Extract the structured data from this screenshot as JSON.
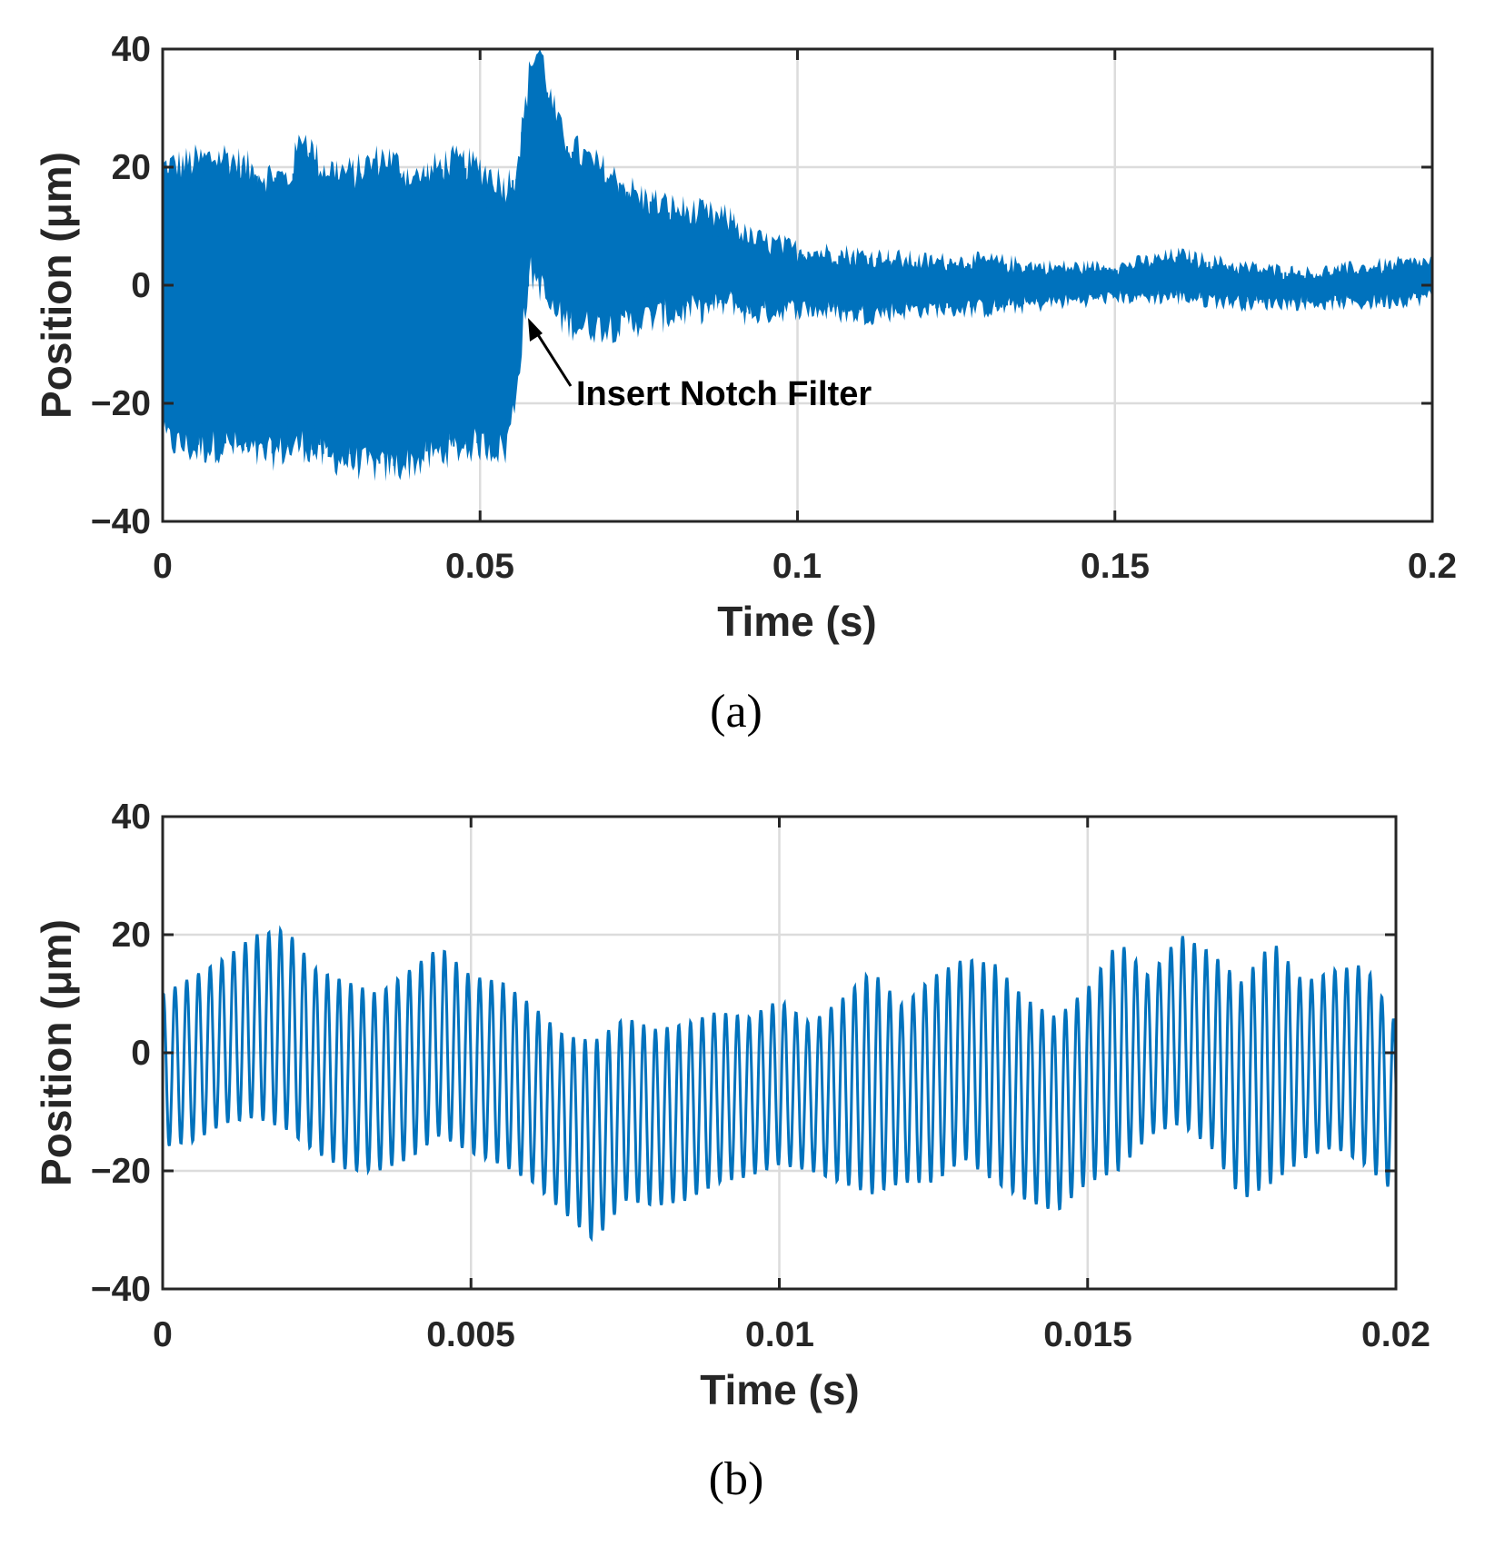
{
  "chart_data": [
    {
      "type": "line",
      "panel_label": "(a)",
      "xlabel": "Time (s)",
      "ylabel": "Position (μm)",
      "xlim": [
        0,
        0.2
      ],
      "ylim": [
        -40,
        40
      ],
      "xticks": [
        0,
        0.05,
        0.1,
        0.15,
        0.2
      ],
      "xtick_labels": [
        "0",
        "0.05",
        "0.1",
        "0.15",
        "0.2"
      ],
      "yticks": [
        -40,
        -20,
        0,
        20,
        40
      ],
      "ytick_labels": [
        "−40",
        "−20",
        "0",
        "20",
        "40"
      ],
      "grid": true,
      "line_color": "#0072BD",
      "annotation": {
        "text": "Insert Notch Filter",
        "x": 0.0575,
        "y": -5
      },
      "series": [
        {
          "name": "position",
          "envelope": {
            "t": [
              0,
              0.005,
              0.01,
              0.015,
              0.02,
              0.022,
              0.025,
              0.03,
              0.035,
              0.04,
              0.045,
              0.05,
              0.054,
              0.0555,
              0.057,
              0.058,
              0.0595,
              0.061,
              0.063,
              0.066,
              0.07,
              0.075,
              0.08,
              0.085,
              0.09,
              0.092,
              0.1,
              0.11,
              0.12,
              0.13,
              0.14,
              0.15,
              0.16,
              0.17,
              0.18,
              0.19,
              0.2
            ],
            "upper": [
              20,
              21,
              22,
              19,
              18,
              26,
              20,
              19,
              22,
              18,
              21,
              20,
              17,
              19,
              29,
              38,
              40,
              32,
              25,
              22,
              19,
              15,
              13,
              12,
              11,
              8,
              6,
              5,
              4,
              4,
              3,
              3,
              5,
              3,
              2,
              3,
              4
            ],
            "lower": [
              -26,
              -28,
              -27,
              -29,
              -28,
              -27,
              -29,
              -30,
              -31,
              -30,
              -28,
              -27,
              -28,
              -20,
              -5,
              2,
              0,
              -4,
              -6,
              -7,
              -7,
              -6,
              -5,
              -4,
              -3,
              -5,
              -4,
              -5,
              -4,
              -4,
              -3,
              -2,
              -2,
              -3,
              -3,
              -3,
              -2
            ]
          }
        }
      ]
    },
    {
      "type": "line",
      "panel_label": "(b)",
      "xlabel": "Time (s)",
      "ylabel": "Position (μm)",
      "xlim": [
        0,
        0.02
      ],
      "ylim": [
        -40,
        40
      ],
      "xticks": [
        0,
        0.005,
        0.01,
        0.015,
        0.02
      ],
      "xtick_labels": [
        "0",
        "0.005",
        "0.01",
        "0.015",
        "0.02"
      ],
      "yticks": [
        -40,
        -20,
        0,
        20,
        40
      ],
      "ytick_labels": [
        "−40",
        "−20",
        "0",
        "20",
        "40"
      ],
      "grid": true,
      "line_color": "#0072BD",
      "series": [
        {
          "name": "position",
          "oscillation_period_s": 0.00019,
          "envelope": {
            "t": [
              0,
              0.0005,
              0.001,
              0.0015,
              0.002,
              0.0025,
              0.003,
              0.0035,
              0.004,
              0.0045,
              0.005,
              0.0055,
              0.006,
              0.0065,
              0.007,
              0.0075,
              0.008,
              0.0085,
              0.009,
              0.0095,
              0.01,
              0.0105,
              0.011,
              0.0115,
              0.012,
              0.0125,
              0.013,
              0.0135,
              0.014,
              0.0145,
              0.015,
              0.0155,
              0.016,
              0.0165,
              0.017,
              0.0175,
              0.018,
              0.0185,
              0.019,
              0.0195,
              0.02
            ],
            "upper": [
              10,
              13,
              16,
              20,
              21,
              14,
              12,
              10,
              14,
              18,
              13,
              12,
              8,
              3,
              2,
              6,
              4,
              5,
              7,
              6,
              9,
              5,
              9,
              14,
              8,
              13,
              16,
              15,
              9,
              6,
              11,
              19,
              13,
              20,
              17,
              12,
              19,
              12,
              14,
              15,
              5
            ],
            "lower": [
              -16,
              -15,
              -12,
              -11,
              -13,
              -17,
              -20,
              -20,
              -18,
              -14,
              -17,
              -19,
              -22,
              -27,
              -32,
              -25,
              -26,
              -25,
              -22,
              -21,
              -19,
              -20,
              -22,
              -24,
              -22,
              -22,
              -18,
              -22,
              -25,
              -27,
              -22,
              -20,
              -14,
              -12,
              -16,
              -25,
              -22,
              -18,
              -16,
              -19,
              -24
            ]
          }
        }
      ]
    }
  ]
}
